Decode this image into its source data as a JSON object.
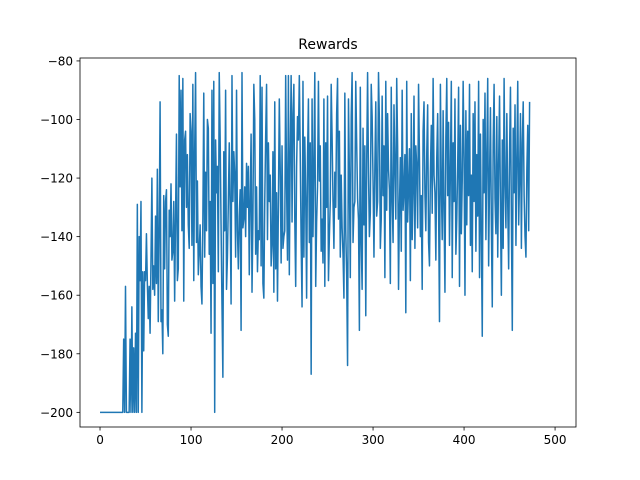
{
  "chart_data": {
    "type": "line",
    "title": "Rewards",
    "xlabel": "",
    "ylabel": "",
    "xlim": [
      -22,
      523
    ],
    "ylim": [
      -205,
      -79
    ],
    "xticks": [
      0,
      100,
      200,
      300,
      400,
      500
    ],
    "yticks": [
      -200,
      -180,
      -160,
      -140,
      -120,
      -100,
      -80
    ],
    "xtick_labels": [
      "0",
      "100",
      "200",
      "300",
      "400",
      "500"
    ],
    "ytick_labels": [
      "−200",
      "−180",
      "−160",
      "−140",
      "−120",
      "−100",
      "−80"
    ],
    "grid": false,
    "series": [
      {
        "color": "#1f77b4",
        "values": [
          -200,
          -200,
          -200,
          -200,
          -200,
          -200,
          -200,
          -200,
          -200,
          -200,
          -200,
          -200,
          -200,
          -200,
          -200,
          -200,
          -200,
          -200,
          -200,
          -200,
          -200,
          -200,
          -200,
          -200,
          -200,
          -200,
          -175,
          -200,
          -157,
          -200,
          -200,
          -200,
          -200,
          -175,
          -200,
          -164,
          -200,
          -178,
          -200,
          -173,
          -200,
          -129,
          -200,
          -140,
          -155,
          -128,
          -200,
          -152,
          -179,
          -152,
          -155,
          -139,
          -156,
          -168,
          -157,
          -173,
          -148,
          -120,
          -158,
          -150,
          -160,
          -133,
          -156,
          -117,
          -169,
          -139,
          -94,
          -169,
          -165,
          -180,
          -126,
          -151,
          -128,
          -124,
          -170,
          -174,
          -131,
          -140,
          -122,
          -148,
          -145,
          -128,
          -162,
          -133,
          -105,
          -155,
          -151,
          -85,
          -123,
          -90,
          -138,
          -86,
          -162,
          -107,
          -104,
          -130,
          -112,
          -136,
          -144,
          -98,
          -104,
          -143,
          -88,
          -155,
          -111,
          -84,
          -142,
          -121,
          -153,
          -145,
          -136,
          -157,
          -163,
          -134,
          -91,
          -147,
          -118,
          -138,
          -100,
          -103,
          -146,
          -128,
          -173,
          -90,
          -156,
          -87,
          -200,
          -107,
          -125,
          -116,
          -152,
          -84,
          -106,
          -136,
          -163,
          -188,
          -111,
          -138,
          -90,
          -158,
          -147,
          -128,
          -108,
          -131,
          -163,
          -85,
          -128,
          -111,
          -119,
          -147,
          -90,
          -138,
          -151,
          -133,
          -124,
          -172,
          -84,
          -137,
          -134,
          -123,
          -140,
          -115,
          -130,
          -116,
          -153,
          -127,
          -105,
          -159,
          -134,
          -88,
          -100,
          -146,
          -123,
          -152,
          -138,
          -141,
          -85,
          -150,
          -89,
          -156,
          -161,
          -128,
          -106,
          -88,
          -141,
          -108,
          -128,
          -119,
          -150,
          -143,
          -111,
          -159,
          -94,
          -151,
          -125,
          -162,
          -129,
          -93,
          -117,
          -149,
          -109,
          -144,
          -140,
          -138,
          -85,
          -123,
          -148,
          -85,
          -153,
          -112,
          -85,
          -135,
          -98,
          -88,
          -134,
          -157,
          -116,
          -99,
          -107,
          -85,
          -112,
          -142,
          -164,
          -87,
          -147,
          -106,
          -126,
          -161,
          -113,
          -93,
          -142,
          -108,
          -187,
          -93,
          -140,
          -116,
          -84,
          -157,
          -135,
          -123,
          -87,
          -121,
          -109,
          -145,
          -134,
          -149,
          -93,
          -157,
          -108,
          -130,
          -92,
          -155,
          -140,
          -128,
          -88,
          -106,
          -128,
          -144,
          -118,
          -130,
          -98,
          -86,
          -134,
          -104,
          -147,
          -119,
          -137,
          -146,
          -161,
          -91,
          -138,
          -153,
          -184,
          -93,
          -119,
          -154,
          -99,
          -84,
          -142,
          -130,
          -128,
          -87,
          -108,
          -127,
          -134,
          -172,
          -89,
          -142,
          -158,
          -103,
          -136,
          -109,
          -167,
          -115,
          -84,
          -118,
          -140,
          -132,
          -88,
          -99,
          -121,
          -147,
          -116,
          -94,
          -133,
          -128,
          -84,
          -101,
          -144,
          -134,
          -92,
          -126,
          -109,
          -154,
          -87,
          -131,
          -98,
          -117,
          -124,
          -156,
          -89,
          -127,
          -142,
          -95,
          -116,
          -134,
          -86,
          -109,
          -158,
          -130,
          -113,
          -145,
          -90,
          -131,
          -124,
          -112,
          -166,
          -87,
          -135,
          -123,
          -110,
          -155,
          -98,
          -141,
          -125,
          -92,
          -144,
          -109,
          -116,
          -137,
          -88,
          -113,
          -140,
          -126,
          -158,
          -104,
          -94,
          -125,
          -138,
          -112,
          -95,
          -142,
          -150,
          -118,
          -102,
          -132,
          -86,
          -119,
          -125,
          -148,
          -113,
          -98,
          -130,
          -169,
          -88,
          -122,
          -141,
          -97,
          -131,
          -159,
          -106,
          -86,
          -126,
          -101,
          -143,
          -117,
          -87,
          -154,
          -108,
          -128,
          -93,
          -146,
          -134,
          -116,
          -89,
          -157,
          -102,
          -139,
          -121,
          -87,
          -113,
          -160,
          -97,
          -136,
          -104,
          -126,
          -88,
          -143,
          -119,
          -152,
          -98,
          -128,
          -94,
          -145,
          -112,
          -133,
          -87,
          -154,
          -105,
          -139,
          -174,
          -100,
          -125,
          -91,
          -141,
          -113,
          -86,
          -150,
          -120,
          -96,
          -136,
          -164,
          -108,
          -88,
          -127,
          -139,
          -99,
          -147,
          -115,
          -92,
          -131,
          -160,
          -107,
          -144,
          -86,
          -122,
          -137,
          -98,
          -129,
          -151,
          -111,
          -89,
          -134,
          -172,
          -103,
          -125,
          -95,
          -143,
          -114,
          -87,
          -136,
          -120,
          -98,
          -144,
          -108,
          -94,
          -126,
          -140,
          -147,
          -117,
          -102,
          -138,
          -94
        ]
      }
    ]
  }
}
